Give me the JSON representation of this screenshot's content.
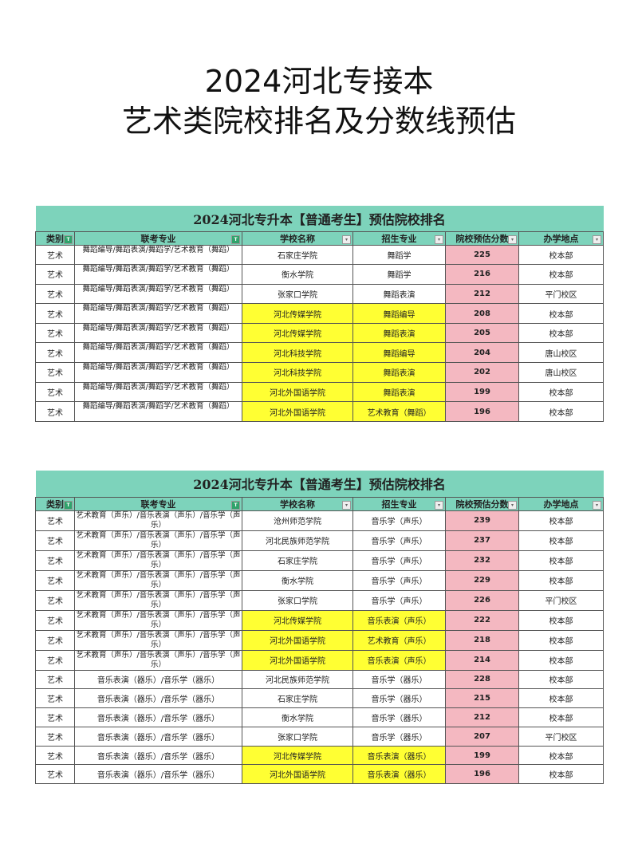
{
  "title": {
    "line1": "2024河北专接本",
    "line2": "艺术类院校排名及分数线预估"
  },
  "colors": {
    "header": "#7dd3bb",
    "highlight": "#ffff33",
    "score": "#f4b8c1"
  },
  "headers": [
    "类别",
    "联考专业",
    "学校名称",
    "招生专业",
    "院校预估分数",
    "办学地点"
  ],
  "tables": [
    {
      "caption": "2024河北专升本【普通考生】预估院校排名",
      "rows": [
        [
          "艺术",
          "舞蹈编导/舞蹈表演/舞蹈学/艺术教育（舞蹈）",
          "石家庄学院",
          "舞蹈学",
          "225",
          "校本部",
          false
        ],
        [
          "艺术",
          "舞蹈编导/舞蹈表演/舞蹈学/艺术教育（舞蹈）",
          "衡水学院",
          "舞蹈学",
          "216",
          "校本部",
          false
        ],
        [
          "艺术",
          "舞蹈编导/舞蹈表演/舞蹈学/艺术教育（舞蹈）",
          "张家口学院",
          "舞蹈表演",
          "212",
          "平门校区",
          false
        ],
        [
          "艺术",
          "舞蹈编导/舞蹈表演/舞蹈学/艺术教育（舞蹈）",
          "河北传媒学院",
          "舞蹈编导",
          "208",
          "校本部",
          true
        ],
        [
          "艺术",
          "舞蹈编导/舞蹈表演/舞蹈学/艺术教育（舞蹈）",
          "河北传媒学院",
          "舞蹈表演",
          "205",
          "校本部",
          true
        ],
        [
          "艺术",
          "舞蹈编导/舞蹈表演/舞蹈学/艺术教育（舞蹈）",
          "河北科技学院",
          "舞蹈编导",
          "204",
          "唐山校区",
          true
        ],
        [
          "艺术",
          "舞蹈编导/舞蹈表演/舞蹈学/艺术教育（舞蹈）",
          "河北科技学院",
          "舞蹈表演",
          "202",
          "唐山校区",
          true
        ],
        [
          "艺术",
          "舞蹈编导/舞蹈表演/舞蹈学/艺术教育（舞蹈）",
          "河北外国语学院",
          "舞蹈表演",
          "199",
          "校本部",
          true
        ],
        [
          "艺术",
          "舞蹈编导/舞蹈表演/舞蹈学/艺术教育（舞蹈）",
          "河北外国语学院",
          "艺术教育（舞蹈）",
          "196",
          "校本部",
          true
        ]
      ]
    },
    {
      "caption": "2024河北专升本【普通考生】预估院校排名",
      "rows": [
        [
          "艺术",
          "艺术教育（声乐）/音乐表演（声乐）/音乐学（声乐）",
          "沧州师范学院",
          "音乐学（声乐）",
          "239",
          "校本部",
          false
        ],
        [
          "艺术",
          "艺术教育（声乐）/音乐表演（声乐）/音乐学（声乐）",
          "河北民族师范学院",
          "音乐学（声乐）",
          "237",
          "校本部",
          false
        ],
        [
          "艺术",
          "艺术教育（声乐）/音乐表演（声乐）/音乐学（声乐）",
          "石家庄学院",
          "音乐学（声乐）",
          "232",
          "校本部",
          false
        ],
        [
          "艺术",
          "艺术教育（声乐）/音乐表演（声乐）/音乐学（声乐）",
          "衡水学院",
          "音乐学（声乐）",
          "229",
          "校本部",
          false
        ],
        [
          "艺术",
          "艺术教育（声乐）/音乐表演（声乐）/音乐学（声乐）",
          "张家口学院",
          "音乐学（声乐）",
          "226",
          "平门校区",
          false
        ],
        [
          "艺术",
          "艺术教育（声乐）/音乐表演（声乐）/音乐学（声乐）",
          "河北传媒学院",
          "音乐表演（声乐）",
          "222",
          "校本部",
          true
        ],
        [
          "艺术",
          "艺术教育（声乐）/音乐表演（声乐）/音乐学（声乐）",
          "河北外国语学院",
          "艺术教育（声乐）",
          "218",
          "校本部",
          true
        ],
        [
          "艺术",
          "艺术教育（声乐）/音乐表演（声乐）/音乐学（声乐）",
          "河北外国语学院",
          "音乐表演（声乐）",
          "214",
          "校本部",
          true
        ],
        [
          "艺术",
          "音乐表演（器乐）/音乐学（器乐）",
          "河北民族师范学院",
          "音乐学（器乐）",
          "228",
          "校本部",
          false
        ],
        [
          "艺术",
          "音乐表演（器乐）/音乐学（器乐）",
          "石家庄学院",
          "音乐学（器乐）",
          "215",
          "校本部",
          false
        ],
        [
          "艺术",
          "音乐表演（器乐）/音乐学（器乐）",
          "衡水学院",
          "音乐学（器乐）",
          "212",
          "校本部",
          false
        ],
        [
          "艺术",
          "音乐表演（器乐）/音乐学（器乐）",
          "张家口学院",
          "音乐学（器乐）",
          "207",
          "平门校区",
          false
        ],
        [
          "艺术",
          "音乐表演（器乐）/音乐学（器乐）",
          "河北传媒学院",
          "音乐表演（器乐）",
          "199",
          "校本部",
          true
        ],
        [
          "艺术",
          "音乐表演（器乐）/音乐学（器乐）",
          "河北外国语学院",
          "音乐表演（器乐）",
          "196",
          "校本部",
          true
        ]
      ]
    }
  ]
}
